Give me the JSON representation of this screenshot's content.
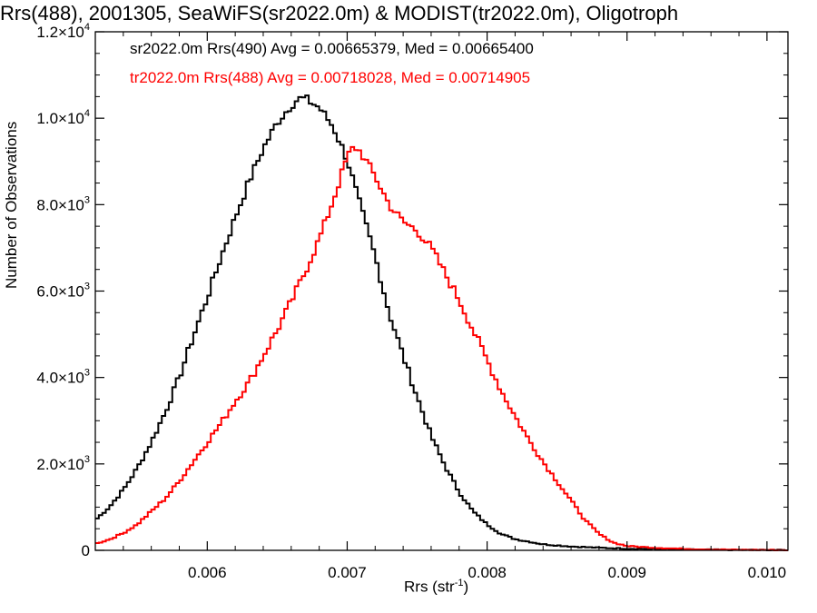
{
  "chart_data": {
    "type": "line",
    "title": "Rrs(488), 2001305, SeaWiFS(sr2022.0m) & MODIST(tr2022.0m), Oligotroph",
    "xlabel_main": "Rrs (str",
    "xlabel_sup": "-1",
    "xlabel_end": ")",
    "ylabel": "Number of Observations",
    "xlim": [
      0.0052,
      0.01015
    ],
    "ylim": [
      0,
      12000
    ],
    "xticks": [
      {
        "value": 0.006,
        "label": "0.006"
      },
      {
        "value": 0.007,
        "label": "0.007"
      },
      {
        "value": 0.008,
        "label": "0.008"
      },
      {
        "value": 0.009,
        "label": "0.009"
      },
      {
        "value": 0.01,
        "label": "0.010"
      }
    ],
    "yticks": [
      {
        "value": 0,
        "mant": "0",
        "exp": ""
      },
      {
        "value": 2000,
        "mant": "2.0×10",
        "exp": "3"
      },
      {
        "value": 4000,
        "mant": "4.0×10",
        "exp": "3"
      },
      {
        "value": 6000,
        "mant": "6.0×10",
        "exp": "3"
      },
      {
        "value": 8000,
        "mant": "8.0×10",
        "exp": "3"
      },
      {
        "value": 10000,
        "mant": "1.0×10",
        "exp": "4"
      },
      {
        "value": 12000,
        "mant": "1.2×10",
        "exp": "4"
      }
    ],
    "annotations": [
      {
        "text": "sr2022.0m Rrs(490) Avg = 0.00665379, Med = 0.00665400",
        "color": "#000000"
      },
      {
        "text": "tr2022.0m Rrs(488) Avg = 0.00718028, Med = 0.00714905",
        "color": "#ff0000"
      }
    ],
    "series": [
      {
        "color": "#000000",
        "style": "histogram-step",
        "points": [
          [
            0.0052,
            700
          ],
          [
            0.0053,
            1000
          ],
          [
            0.0054,
            1400
          ],
          [
            0.0055,
            1900
          ],
          [
            0.0056,
            2500
          ],
          [
            0.0057,
            3200
          ],
          [
            0.0058,
            4000
          ],
          [
            0.0059,
            4950
          ],
          [
            0.006,
            5850
          ],
          [
            0.0061,
            6800
          ],
          [
            0.0062,
            7700
          ],
          [
            0.0063,
            8550
          ],
          [
            0.0064,
            9300
          ],
          [
            0.0065,
            9900
          ],
          [
            0.0066,
            10300
          ],
          [
            0.00665,
            10450
          ],
          [
            0.0067,
            10450
          ],
          [
            0.0068,
            10250
          ],
          [
            0.0069,
            9800
          ],
          [
            0.007,
            9050
          ],
          [
            0.0071,
            7900
          ],
          [
            0.0072,
            6800
          ],
          [
            0.0073,
            5500
          ],
          [
            0.0074,
            4500
          ],
          [
            0.0075,
            3550
          ],
          [
            0.0076,
            2650
          ],
          [
            0.0077,
            1950
          ],
          [
            0.0078,
            1350
          ],
          [
            0.0079,
            900
          ],
          [
            0.008,
            600
          ],
          [
            0.0081,
            380
          ],
          [
            0.0082,
            260
          ],
          [
            0.0084,
            140
          ],
          [
            0.0086,
            90
          ],
          [
            0.0088,
            60
          ],
          [
            0.009,
            40
          ],
          [
            0.0094,
            20
          ],
          [
            0.0098,
            10
          ],
          [
            0.01015,
            5
          ]
        ]
      },
      {
        "color": "#ff0000",
        "style": "histogram-step",
        "points": [
          [
            0.0052,
            150
          ],
          [
            0.0053,
            250
          ],
          [
            0.0054,
            400
          ],
          [
            0.0055,
            600
          ],
          [
            0.0056,
            900
          ],
          [
            0.0057,
            1200
          ],
          [
            0.0058,
            1600
          ],
          [
            0.0059,
            2050
          ],
          [
            0.006,
            2500
          ],
          [
            0.0061,
            2950
          ],
          [
            0.0062,
            3450
          ],
          [
            0.0063,
            3900
          ],
          [
            0.0064,
            4500
          ],
          [
            0.0065,
            5100
          ],
          [
            0.0066,
            5750
          ],
          [
            0.0067,
            6450
          ],
          [
            0.0068,
            7200
          ],
          [
            0.0069,
            8100
          ],
          [
            0.007,
            9100
          ],
          [
            0.00705,
            9350
          ],
          [
            0.0071,
            9200
          ],
          [
            0.0072,
            8650
          ],
          [
            0.0073,
            8000
          ],
          [
            0.0074,
            7600
          ],
          [
            0.0075,
            7400
          ],
          [
            0.0076,
            7000
          ],
          [
            0.0077,
            6400
          ],
          [
            0.0078,
            5800
          ],
          [
            0.0079,
            5100
          ],
          [
            0.008,
            4400
          ],
          [
            0.0081,
            3700
          ],
          [
            0.0082,
            3100
          ],
          [
            0.0083,
            2550
          ],
          [
            0.0084,
            2050
          ],
          [
            0.0085,
            1600
          ],
          [
            0.0086,
            1150
          ],
          [
            0.0087,
            700
          ],
          [
            0.0088,
            380
          ],
          [
            0.0089,
            180
          ],
          [
            0.009,
            100
          ],
          [
            0.0092,
            60
          ],
          [
            0.0094,
            35
          ],
          [
            0.0096,
            20
          ],
          [
            0.0098,
            12
          ],
          [
            0.01015,
            5
          ]
        ]
      }
    ]
  }
}
